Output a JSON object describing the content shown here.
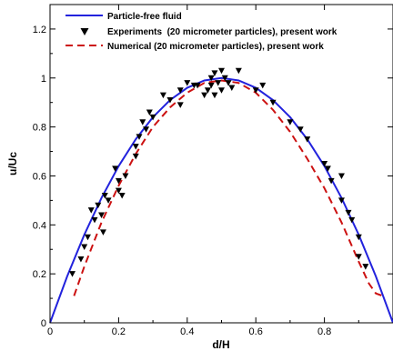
{
  "chart_data": {
    "type": "line",
    "xlabel": "d/H",
    "ylabel": "u/Uc",
    "xlim": [
      0,
      1
    ],
    "ylim": [
      0,
      1.3
    ],
    "xticks": [
      "0",
      "0.2",
      "0.4",
      "0.6",
      "0.8"
    ],
    "yticks": [
      "0",
      "0.2",
      "0.4",
      "0.6",
      "0.8",
      "1",
      "1.2"
    ],
    "grid": false,
    "legend_position": "top",
    "colors": {
      "blue": "#2222dd",
      "red": "#cc1111",
      "marker": "#000000"
    },
    "series": [
      {
        "name": "Particle-free fluid",
        "style": "solid line",
        "color": "#2222dd",
        "x": [
          0,
          0.05,
          0.1,
          0.15,
          0.2,
          0.25,
          0.3,
          0.35,
          0.4,
          0.45,
          0.5,
          0.55,
          0.6,
          0.65,
          0.7,
          0.75,
          0.8,
          0.85,
          0.9,
          0.95,
          1
        ],
        "y": [
          0,
          0.19,
          0.36,
          0.51,
          0.64,
          0.75,
          0.84,
          0.91,
          0.96,
          0.99,
          1,
          0.99,
          0.96,
          0.91,
          0.84,
          0.75,
          0.64,
          0.51,
          0.36,
          0.19,
          0
        ]
      },
      {
        "name": "Experiments  (20 micrometer particles), present work",
        "style": "markers",
        "marker": "triangle-down",
        "color": "#000000",
        "x": [
          0.065,
          0.09,
          0.1,
          0.11,
          0.12,
          0.13,
          0.14,
          0.15,
          0.155,
          0.16,
          0.17,
          0.19,
          0.2,
          0.2,
          0.21,
          0.22,
          0.25,
          0.25,
          0.26,
          0.27,
          0.28,
          0.29,
          0.3,
          0.33,
          0.35,
          0.38,
          0.38,
          0.4,
          0.42,
          0.43,
          0.45,
          0.46,
          0.47,
          0.47,
          0.48,
          0.48,
          0.49,
          0.5,
          0.5,
          0.51,
          0.52,
          0.53,
          0.55,
          0.6,
          0.62,
          0.65,
          0.7,
          0.73,
          0.75,
          0.8,
          0.81,
          0.82,
          0.85,
          0.85,
          0.87,
          0.88,
          0.9,
          0.9,
          0.92
        ],
        "y": [
          0.2,
          0.26,
          0.31,
          0.35,
          0.46,
          0.42,
          0.48,
          0.44,
          0.37,
          0.52,
          0.5,
          0.63,
          0.58,
          0.54,
          0.52,
          0.6,
          0.68,
          0.72,
          0.76,
          0.82,
          0.79,
          0.86,
          0.84,
          0.93,
          0.91,
          0.95,
          0.89,
          0.98,
          0.97,
          0.97,
          0.93,
          0.95,
          1.0,
          0.97,
          0.93,
          1.02,
          0.98,
          1.03,
          0.95,
          1.0,
          0.98,
          0.96,
          1.03,
          0.95,
          0.97,
          0.9,
          0.82,
          0.79,
          0.75,
          0.65,
          0.63,
          0.58,
          0.6,
          0.5,
          0.45,
          0.42,
          0.35,
          0.27,
          0.23
        ]
      },
      {
        "name": "Numerical (20 micrometer particles), present work",
        "style": "dashed line",
        "color": "#cc1111",
        "x": [
          0.07,
          0.1,
          0.15,
          0.2,
          0.25,
          0.3,
          0.35,
          0.4,
          0.45,
          0.5,
          0.55,
          0.6,
          0.65,
          0.7,
          0.75,
          0.8,
          0.85,
          0.9,
          0.93,
          0.95,
          0.97
        ],
        "y": [
          0.11,
          0.23,
          0.41,
          0.56,
          0.69,
          0.8,
          0.88,
          0.94,
          0.98,
          0.99,
          0.98,
          0.94,
          0.87,
          0.78,
          0.67,
          0.55,
          0.41,
          0.25,
          0.16,
          0.12,
          0.11
        ]
      }
    ]
  }
}
